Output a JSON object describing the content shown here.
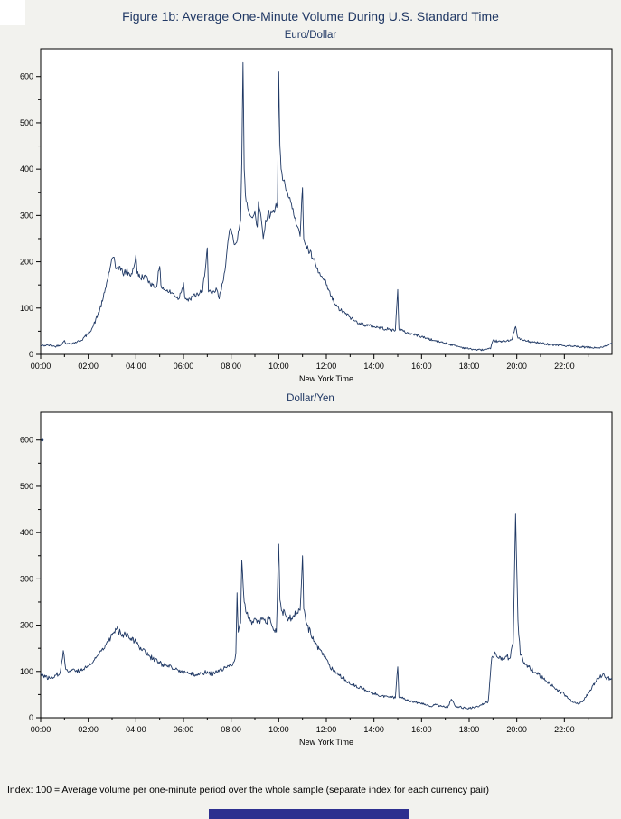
{
  "figure": {
    "title": "Figure 1b: Average One-Minute Volume During U.S. Standard Time",
    "footnote": "Index: 100 = Average volume per one-minute period over the whole sample  (separate index for each currency pair)"
  },
  "colors": {
    "line": "#1f3864",
    "axis": "#000000",
    "plot_bg": "#ffffff",
    "page_bg": "#f2f2ee",
    "title": "#203864",
    "bottom_bar": "#2d2f8f"
  },
  "chart_data": [
    {
      "type": "line",
      "title": "Euro/Dollar",
      "xlabel": "New York Time",
      "ylabel": "",
      "xlim": [
        0,
        24
      ],
      "ylim": [
        0,
        660
      ],
      "yticks": [
        0,
        100,
        200,
        300,
        400,
        500,
        600
      ],
      "ytick_minor_step": 50,
      "xtick_hours": [
        0,
        2,
        4,
        6,
        8,
        10,
        12,
        14,
        16,
        18,
        20,
        22
      ],
      "xtick_labels": [
        "00:00",
        "02:00",
        "04:00",
        "06:00",
        "08:00",
        "10:00",
        "12:00",
        "14:00",
        "16:00",
        "18:00",
        "20:00",
        "22:00"
      ],
      "xtick_minor_step": 1,
      "grid": false,
      "legend": "none",
      "series_name": "Euro/Dollar average one-minute volume index",
      "keypoints": [
        [
          0,
          18
        ],
        [
          0.3,
          20
        ],
        [
          0.6,
          17
        ],
        [
          0.9,
          22
        ],
        [
          1.0,
          30
        ],
        [
          1.1,
          22
        ],
        [
          1.4,
          25
        ],
        [
          1.7,
          30
        ],
        [
          2.0,
          45
        ],
        [
          2.2,
          60
        ],
        [
          2.4,
          85
        ],
        [
          2.6,
          115
        ],
        [
          2.8,
          160
        ],
        [
          2.95,
          195
        ],
        [
          3.05,
          210
        ],
        [
          3.15,
          185
        ],
        [
          3.3,
          190
        ],
        [
          3.45,
          175
        ],
        [
          3.6,
          180
        ],
        [
          3.75,
          170
        ],
        [
          3.9,
          185
        ],
        [
          4.0,
          215
        ],
        [
          4.05,
          175
        ],
        [
          4.2,
          165
        ],
        [
          4.35,
          170
        ],
        [
          4.5,
          160
        ],
        [
          4.7,
          150
        ],
        [
          4.85,
          145
        ],
        [
          5.0,
          190
        ],
        [
          5.05,
          150
        ],
        [
          5.2,
          140
        ],
        [
          5.4,
          135
        ],
        [
          5.6,
          130
        ],
        [
          5.8,
          120
        ],
        [
          6.0,
          155
        ],
        [
          6.05,
          125
        ],
        [
          6.2,
          115
        ],
        [
          6.4,
          125
        ],
        [
          6.6,
          130
        ],
        [
          6.8,
          135
        ],
        [
          7.0,
          230
        ],
        [
          7.05,
          135
        ],
        [
          7.2,
          130
        ],
        [
          7.4,
          140
        ],
        [
          7.5,
          120
        ],
        [
          7.65,
          155
        ],
        [
          7.8,
          210
        ],
        [
          7.9,
          255
        ],
        [
          8.0,
          270
        ],
        [
          8.1,
          245
        ],
        [
          8.2,
          240
        ],
        [
          8.3,
          265
        ],
        [
          8.4,
          290
        ],
        [
          8.45,
          420
        ],
        [
          8.5,
          630
        ],
        [
          8.55,
          400
        ],
        [
          8.6,
          345
        ],
        [
          8.7,
          315
        ],
        [
          8.8,
          300
        ],
        [
          8.9,
          295
        ],
        [
          9.0,
          310
        ],
        [
          9.1,
          275
        ],
        [
          9.15,
          330
        ],
        [
          9.25,
          300
        ],
        [
          9.35,
          250
        ],
        [
          9.45,
          290
        ],
        [
          9.55,
          305
        ],
        [
          9.65,
          300
        ],
        [
          9.75,
          310
        ],
        [
          9.85,
          315
        ],
        [
          9.95,
          330
        ],
        [
          10.0,
          610
        ],
        [
          10.05,
          450
        ],
        [
          10.1,
          400
        ],
        [
          10.2,
          375
        ],
        [
          10.3,
          355
        ],
        [
          10.4,
          340
        ],
        [
          10.5,
          330
        ],
        [
          10.6,
          315
        ],
        [
          10.7,
          295
        ],
        [
          10.8,
          275
        ],
        [
          10.9,
          255
        ],
        [
          11.0,
          360
        ],
        [
          11.05,
          250
        ],
        [
          11.15,
          235
        ],
        [
          11.3,
          220
        ],
        [
          11.45,
          205
        ],
        [
          11.6,
          185
        ],
        [
          11.75,
          170
        ],
        [
          11.9,
          160
        ],
        [
          12.0,
          150
        ],
        [
          12.2,
          125
        ],
        [
          12.4,
          105
        ],
        [
          12.6,
          95
        ],
        [
          12.8,
          88
        ],
        [
          13.0,
          80
        ],
        [
          13.2,
          72
        ],
        [
          13.4,
          68
        ],
        [
          13.6,
          64
        ],
        [
          13.8,
          62
        ],
        [
          14.0,
          60
        ],
        [
          14.3,
          57
        ],
        [
          14.6,
          54
        ],
        [
          14.9,
          52
        ],
        [
          15.0,
          140
        ],
        [
          15.05,
          55
        ],
        [
          15.3,
          48
        ],
        [
          15.6,
          44
        ],
        [
          15.9,
          40
        ],
        [
          16.2,
          35
        ],
        [
          16.5,
          30
        ],
        [
          16.8,
          27
        ],
        [
          17.1,
          23
        ],
        [
          17.4,
          19
        ],
        [
          17.7,
          15
        ],
        [
          18.0,
          12
        ],
        [
          18.3,
          10
        ],
        [
          18.6,
          10
        ],
        [
          18.9,
          12
        ],
        [
          19.0,
          30
        ],
        [
          19.2,
          28
        ],
        [
          19.4,
          27
        ],
        [
          19.6,
          30
        ],
        [
          19.8,
          32
        ],
        [
          19.95,
          60
        ],
        [
          20.05,
          35
        ],
        [
          20.3,
          30
        ],
        [
          20.6,
          27
        ],
        [
          20.9,
          25
        ],
        [
          21.2,
          23
        ],
        [
          21.5,
          21
        ],
        [
          21.8,
          20
        ],
        [
          22.1,
          18
        ],
        [
          22.4,
          17
        ],
        [
          22.7,
          16
        ],
        [
          23.0,
          15
        ],
        [
          23.3,
          14
        ],
        [
          23.6,
          15
        ],
        [
          23.85,
          20
        ],
        [
          24,
          25
        ]
      ]
    },
    {
      "type": "line",
      "title": "Dollar/Yen",
      "xlabel": "New York Time",
      "ylabel": "",
      "xlim": [
        0,
        24
      ],
      "ylim": [
        0,
        660
      ],
      "yticks": [
        0,
        100,
        200,
        300,
        400,
        500,
        600
      ],
      "ytick_minor_step": 50,
      "xtick_hours": [
        0,
        2,
        4,
        6,
        8,
        10,
        12,
        14,
        16,
        18,
        20,
        22
      ],
      "xtick_labels": [
        "00:00",
        "02:00",
        "04:00",
        "06:00",
        "08:00",
        "10:00",
        "12:00",
        "14:00",
        "16:00",
        "18:00",
        "20:00",
        "22:00"
      ],
      "xtick_minor_step": 1,
      "grid": false,
      "legend": "none",
      "series_name": "Dollar/Yen average one-minute volume index",
      "outlier_point": [
        0.07,
        600
      ],
      "keypoints": [
        [
          0,
          95
        ],
        [
          0.2,
          88
        ],
        [
          0.4,
          85
        ],
        [
          0.6,
          92
        ],
        [
          0.8,
          95
        ],
        [
          0.95,
          145
        ],
        [
          1.05,
          105
        ],
        [
          1.2,
          100
        ],
        [
          1.4,
          105
        ],
        [
          1.6,
          100
        ],
        [
          1.8,
          105
        ],
        [
          2.0,
          112
        ],
        [
          2.2,
          120
        ],
        [
          2.4,
          135
        ],
        [
          2.6,
          150
        ],
        [
          2.8,
          165
        ],
        [
          3.0,
          178
        ],
        [
          3.2,
          192
        ],
        [
          3.35,
          185
        ],
        [
          3.5,
          180
        ],
        [
          3.65,
          182
        ],
        [
          3.8,
          172
        ],
        [
          4.0,
          162
        ],
        [
          4.2,
          152
        ],
        [
          4.4,
          142
        ],
        [
          4.6,
          132
        ],
        [
          4.8,
          125
        ],
        [
          5.0,
          118
        ],
        [
          5.3,
          112
        ],
        [
          5.6,
          105
        ],
        [
          5.9,
          100
        ],
        [
          6.2,
          96
        ],
        [
          6.5,
          93
        ],
        [
          6.8,
          96
        ],
        [
          7.0,
          100
        ],
        [
          7.2,
          94
        ],
        [
          7.4,
          98
        ],
        [
          7.6,
          104
        ],
        [
          7.8,
          108
        ],
        [
          8.0,
          112
        ],
        [
          8.1,
          120
        ],
        [
          8.2,
          140
        ],
        [
          8.25,
          270
        ],
        [
          8.3,
          185
        ],
        [
          8.4,
          205
        ],
        [
          8.45,
          340
        ],
        [
          8.55,
          250
        ],
        [
          8.65,
          225
        ],
        [
          8.75,
          213
        ],
        [
          8.9,
          208
        ],
        [
          9.0,
          215
        ],
        [
          9.15,
          208
        ],
        [
          9.3,
          212
        ],
        [
          9.45,
          205
        ],
        [
          9.6,
          213
        ],
        [
          9.75,
          195
        ],
        [
          9.9,
          185
        ],
        [
          10.0,
          375
        ],
        [
          10.05,
          255
        ],
        [
          10.15,
          230
        ],
        [
          10.3,
          220
        ],
        [
          10.45,
          213
        ],
        [
          10.6,
          220
        ],
        [
          10.75,
          225
        ],
        [
          10.9,
          232
        ],
        [
          11.0,
          350
        ],
        [
          11.05,
          235
        ],
        [
          11.2,
          200
        ],
        [
          11.35,
          180
        ],
        [
          11.5,
          165
        ],
        [
          11.7,
          148
        ],
        [
          11.9,
          132
        ],
        [
          12.1,
          115
        ],
        [
          12.3,
          100
        ],
        [
          12.5,
          92
        ],
        [
          12.8,
          82
        ],
        [
          13.1,
          72
        ],
        [
          13.4,
          65
        ],
        [
          13.7,
          58
        ],
        [
          14.0,
          52
        ],
        [
          14.3,
          48
        ],
        [
          14.6,
          45
        ],
        [
          14.9,
          43
        ],
        [
          15.0,
          110
        ],
        [
          15.05,
          45
        ],
        [
          15.3,
          40
        ],
        [
          15.6,
          36
        ],
        [
          15.9,
          32
        ],
        [
          16.2,
          27
        ],
        [
          16.4,
          24
        ],
        [
          16.6,
          28
        ],
        [
          16.9,
          24
        ],
        [
          17.1,
          22
        ],
        [
          17.25,
          40
        ],
        [
          17.4,
          26
        ],
        [
          17.6,
          23
        ],
        [
          17.9,
          20
        ],
        [
          18.2,
          22
        ],
        [
          18.5,
          28
        ],
        [
          18.8,
          35
        ],
        [
          18.95,
          130
        ],
        [
          19.1,
          140
        ],
        [
          19.25,
          128
        ],
        [
          19.4,
          124
        ],
        [
          19.55,
          133
        ],
        [
          19.7,
          128
        ],
        [
          19.85,
          160
        ],
        [
          19.95,
          440
        ],
        [
          20.05,
          210
        ],
        [
          20.15,
          135
        ],
        [
          20.3,
          118
        ],
        [
          20.5,
          110
        ],
        [
          20.8,
          98
        ],
        [
          21.1,
          85
        ],
        [
          21.4,
          72
        ],
        [
          21.7,
          60
        ],
        [
          22.0,
          50
        ],
        [
          22.2,
          40
        ],
        [
          22.4,
          33
        ],
        [
          22.6,
          30
        ],
        [
          22.8,
          38
        ],
        [
          23.0,
          52
        ],
        [
          23.2,
          70
        ],
        [
          23.4,
          85
        ],
        [
          23.6,
          92
        ],
        [
          23.8,
          86
        ],
        [
          24,
          85
        ]
      ]
    }
  ]
}
